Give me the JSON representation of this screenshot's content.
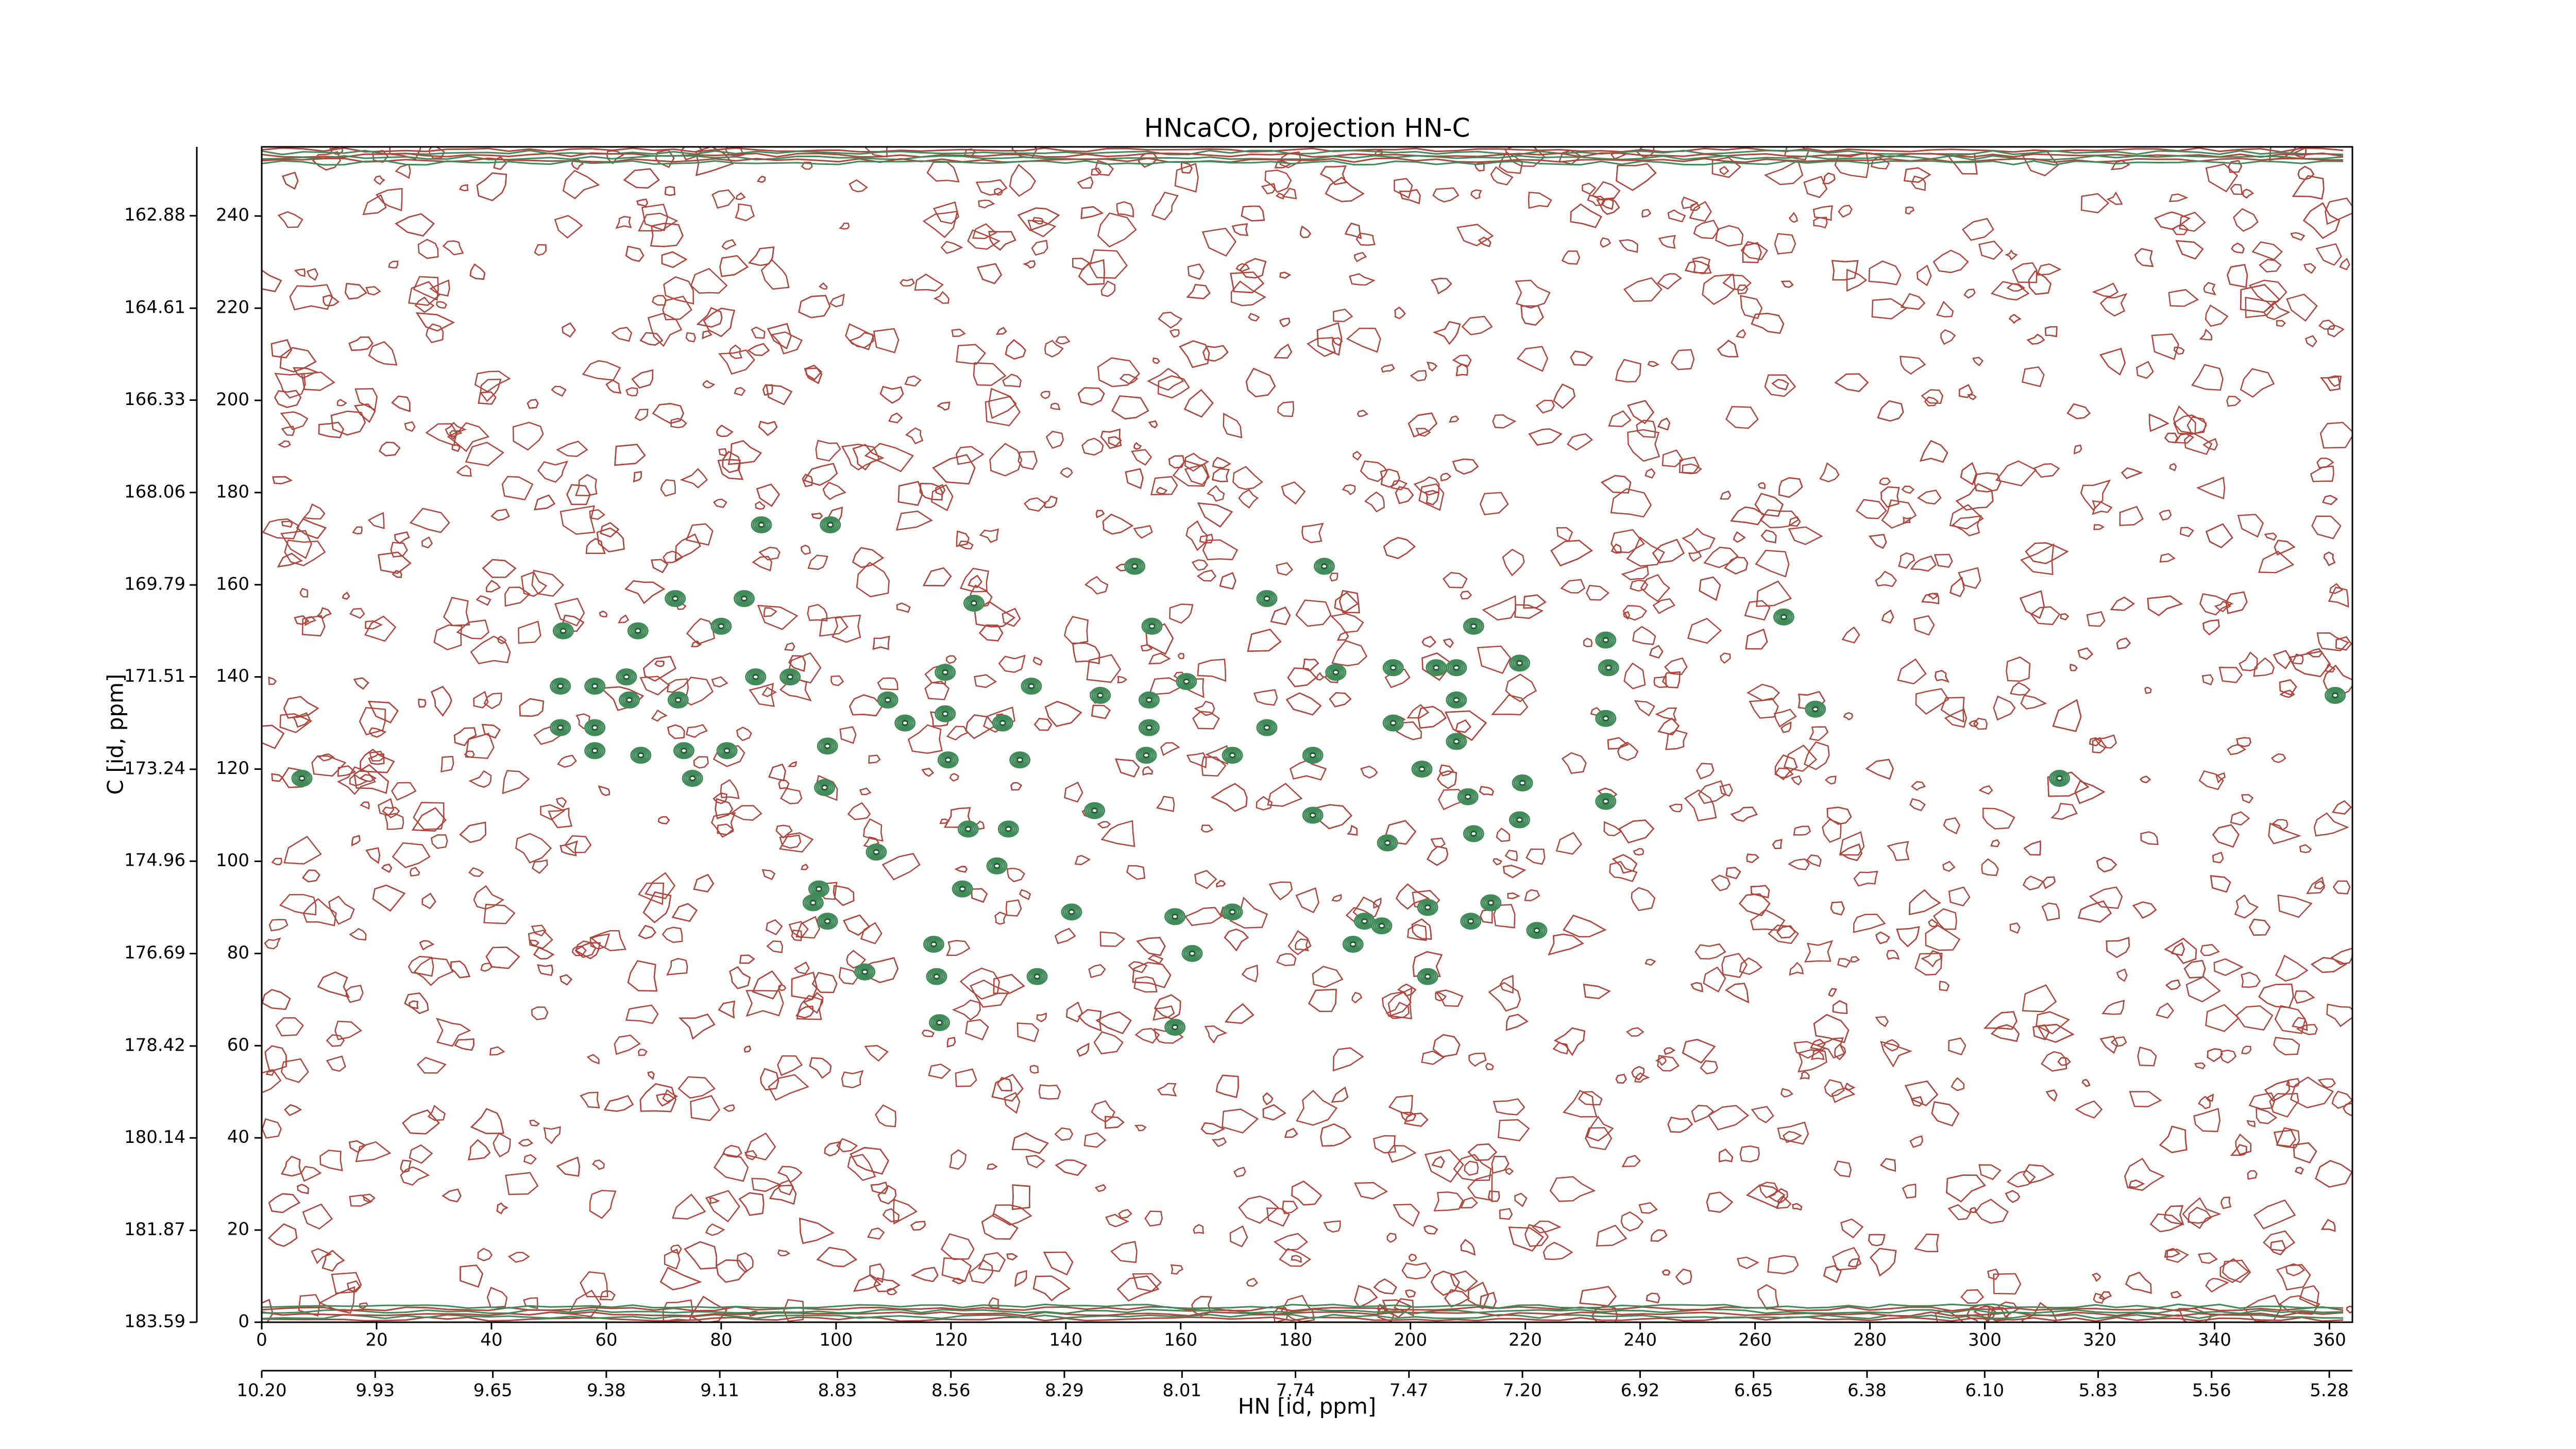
{
  "chart_data": {
    "type": "contour",
    "title": "HNcaCO, projection HN-C",
    "xlabel": "HN [id, ppm]",
    "ylabel": "C [id, ppm]",
    "xlim": [
      0,
      364
    ],
    "xticks": [
      0,
      20,
      40,
      60,
      80,
      100,
      120,
      140,
      160,
      180,
      200,
      220,
      240,
      260,
      280,
      300,
      320,
      340,
      360
    ],
    "ylim": [
      0,
      255
    ],
    "yticks": [
      0,
      20,
      40,
      60,
      80,
      100,
      120,
      140,
      160,
      180,
      200,
      220,
      240
    ],
    "x2lim": [
      10.2,
      5.225
    ],
    "x2ticks": [
      {
        "value": 10.2,
        "label": "10.20"
      },
      9.93,
      9.65,
      9.38,
      9.11,
      8.83,
      8.56,
      8.29,
      8.01,
      7.74,
      7.47,
      {
        "value": 7.2,
        "label": "7.20"
      },
      6.92,
      6.65,
      6.38,
      {
        "value": 6.1,
        "label": "6.10"
      },
      5.83,
      5.56,
      5.28
    ],
    "y2lim": [
      183.59,
      161.59
    ],
    "y2ticks": [
      183.59,
      181.87,
      180.14,
      178.42,
      176.69,
      174.96,
      173.24,
      171.51,
      169.79,
      168.06,
      166.33,
      164.61,
      162.88
    ],
    "colors": {
      "positive": "#3f8a58",
      "negative": "#b0453b"
    },
    "x": [
      7,
      52.5,
      52,
      52,
      58,
      58,
      58,
      65.5,
      63.5,
      64,
      66,
      72,
      72.5,
      73.5,
      75,
      80,
      81,
      84,
      87,
      86,
      92,
      99,
      98.5,
      98,
      97,
      96,
      98.5,
      105,
      107,
      112,
      109,
      119,
      119,
      119.5,
      124,
      123,
      122,
      117,
      117.5,
      118,
      129,
      130,
      128,
      134,
      132,
      135,
      141,
      146,
      145,
      152,
      155,
      154.5,
      154.5,
      154,
      161,
      159,
      159,
      162,
      169,
      169,
      175,
      175,
      185,
      187,
      183,
      183,
      192,
      190,
      195,
      197,
      196,
      197,
      203,
      203,
      204.5,
      208,
      211,
      208,
      208,
      202,
      210,
      211,
      214,
      219,
      219.5,
      219,
      222,
      234,
      234.5,
      234,
      234,
      265,
      270.5,
      313,
      361,
      210.5
    ],
    "y": [
      118,
      150,
      138,
      129,
      138,
      129,
      124,
      150,
      140,
      135,
      123,
      157,
      135,
      124,
      118,
      151,
      124,
      157,
      173,
      140,
      140,
      173,
      125,
      116,
      94,
      91,
      87,
      76,
      102,
      130,
      135,
      141,
      132,
      122,
      156,
      107,
      94,
      82,
      75,
      65,
      130,
      107,
      99,
      138,
      122,
      75,
      89,
      136,
      111,
      164,
      151,
      135,
      129,
      123,
      139,
      88,
      64,
      80,
      123,
      89,
      129,
      157,
      164,
      141,
      123,
      110,
      87,
      82,
      86,
      130,
      104,
      142,
      90,
      75,
      142,
      142,
      151,
      135,
      126,
      120,
      114,
      106,
      91,
      143,
      117,
      109,
      85,
      148,
      142,
      131,
      113,
      153,
      133,
      118,
      136,
      87
    ]
  }
}
